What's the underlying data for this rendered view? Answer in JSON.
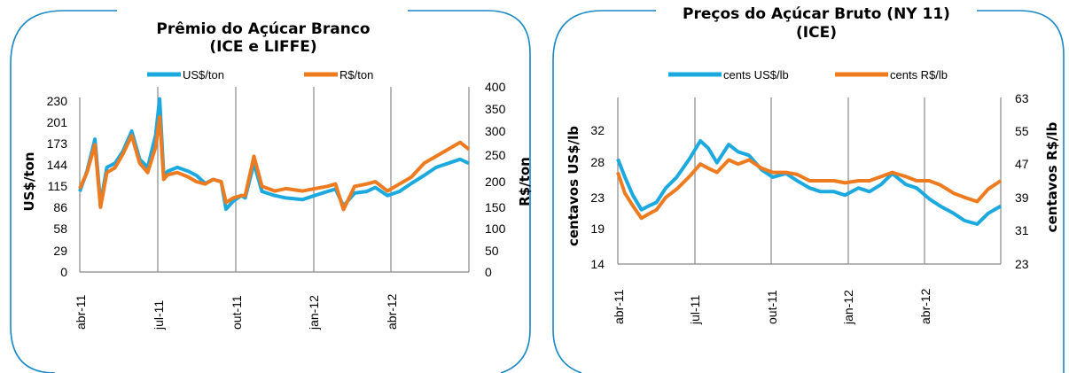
{
  "colors": {
    "usd": "#1ba9df",
    "brl": "#ee7b1f",
    "frame": "#1787c6",
    "grid": "#888888"
  },
  "chart_data": [
    {
      "type": "line",
      "title_line1": "Prêmio do Açúcar Branco",
      "title_line2": "(ICE e LIFFE)",
      "ylabel_left": "US$/ton",
      "ylabel_right": "R$/ton",
      "y_left_ticks": [
        "0",
        "29",
        "58",
        "86",
        "115",
        "144",
        "173",
        "201",
        "230"
      ],
      "y_right_ticks": [
        "0",
        "50",
        "100",
        "150",
        "200",
        "250",
        "300",
        "350",
        "400"
      ],
      "ylim_left": [
        0,
        230
      ],
      "ylim_right": [
        0,
        400
      ],
      "x_ticks": [
        "abr-11",
        "jul-11",
        "out-11",
        "jan-12",
        "abr-12"
      ],
      "x_range": [
        "2011-04-01",
        "2012-07-31"
      ],
      "legend_position": "top",
      "series": [
        {
          "name": "US$/ton",
          "axis": "left",
          "x": [
            "2011-04-01",
            "2011-04-10",
            "2011-04-20",
            "2011-04-27",
            "2011-05-05",
            "2011-05-15",
            "2011-05-25",
            "2011-06-05",
            "2011-06-15",
            "2011-06-25",
            "2011-07-05",
            "2011-07-10",
            "2011-07-15",
            "2011-07-20",
            "2011-08-01",
            "2011-08-15",
            "2011-08-25",
            "2011-09-05",
            "2011-09-15",
            "2011-09-25",
            "2011-10-01",
            "2011-10-10",
            "2011-10-20",
            "2011-10-25",
            "2011-11-05",
            "2011-11-15",
            "2011-12-01",
            "2011-12-15",
            "2012-01-05",
            "2012-01-20",
            "2012-02-05",
            "2012-02-15",
            "2012-02-25",
            "2012-03-10",
            "2012-03-25",
            "2012-04-05",
            "2012-04-20",
            "2012-05-05",
            "2012-05-20",
            "2012-06-05",
            "2012-06-20",
            "2012-07-05",
            "2012-07-20",
            "2012-07-31"
          ],
          "values": [
            100,
            125,
            165,
            85,
            130,
            135,
            150,
            175,
            140,
            130,
            170,
            215,
            120,
            125,
            130,
            125,
            120,
            110,
            115,
            112,
            78,
            88,
            95,
            92,
            135,
            100,
            95,
            92,
            90,
            95,
            100,
            103,
            82,
            98,
            100,
            105,
            95,
            100,
            110,
            120,
            130,
            135,
            140,
            135
          ]
        },
        {
          "name": "R$/ton",
          "axis": "right",
          "x": [
            "2011-04-01",
            "2011-04-10",
            "2011-04-20",
            "2011-04-27",
            "2011-05-05",
            "2011-05-15",
            "2011-05-25",
            "2011-06-05",
            "2011-06-15",
            "2011-06-25",
            "2011-07-05",
            "2011-07-10",
            "2011-07-15",
            "2011-07-20",
            "2011-08-01",
            "2011-08-15",
            "2011-08-25",
            "2011-09-05",
            "2011-09-15",
            "2011-09-25",
            "2011-10-01",
            "2011-10-10",
            "2011-10-20",
            "2011-10-25",
            "2011-11-05",
            "2011-11-15",
            "2011-12-01",
            "2011-12-15",
            "2012-01-05",
            "2012-01-20",
            "2012-02-05",
            "2012-02-15",
            "2012-02-25",
            "2012-03-10",
            "2012-03-25",
            "2012-04-05",
            "2012-04-20",
            "2012-05-05",
            "2012-05-20",
            "2012-06-05",
            "2012-06-20",
            "2012-07-05",
            "2012-07-20",
            "2012-07-31"
          ],
          "values": [
            180,
            215,
            275,
            140,
            215,
            225,
            255,
            295,
            235,
            215,
            270,
            335,
            200,
            210,
            215,
            205,
            195,
            190,
            200,
            195,
            150,
            160,
            165,
            165,
            250,
            185,
            175,
            180,
            175,
            180,
            185,
            190,
            135,
            185,
            190,
            195,
            175,
            190,
            205,
            235,
            250,
            265,
            280,
            265
          ]
        }
      ]
    },
    {
      "type": "line",
      "title_line1": "Preços do Açúcar Bruto (NY 11)",
      "title_line2": "(ICE)",
      "ylabel_left": "centavos US$/lb",
      "ylabel_right": "centavos R$/lb",
      "y_left_ticks": [
        "14",
        "19",
        "23",
        "28",
        "32"
      ],
      "y_right_ticks": [
        "23",
        "31",
        "39",
        "47",
        "55",
        "63"
      ],
      "ylim_left": [
        14,
        37
      ],
      "ylim_right": [
        23,
        63
      ],
      "x_ticks": [
        "abr-11",
        "jul-11",
        "out-11",
        "jan-12",
        "abr-12"
      ],
      "x_range": [
        "2011-04-01",
        "2012-07-31"
      ],
      "legend_position": "top",
      "series": [
        {
          "name": "cents US$/lb",
          "axis": "left",
          "x": [
            "2011-04-01",
            "2011-04-10",
            "2011-04-20",
            "2011-05-01",
            "2011-05-10",
            "2011-05-20",
            "2011-06-01",
            "2011-06-15",
            "2011-07-01",
            "2011-07-15",
            "2011-07-25",
            "2011-08-05",
            "2011-08-20",
            "2011-09-01",
            "2011-09-15",
            "2011-10-01",
            "2011-10-15",
            "2011-11-01",
            "2011-11-15",
            "2011-12-01",
            "2011-12-15",
            "2012-01-01",
            "2012-01-15",
            "2012-02-01",
            "2012-02-15",
            "2012-03-01",
            "2012-03-15",
            "2012-04-01",
            "2012-04-15",
            "2012-05-01",
            "2012-05-15",
            "2012-06-01",
            "2012-06-15",
            "2012-07-01",
            "2012-07-15",
            "2012-07-31"
          ],
          "values": [
            28.5,
            26,
            23.5,
            21.5,
            22,
            22.5,
            24.5,
            26,
            28.5,
            31,
            30,
            28,
            30.5,
            29.5,
            29,
            27,
            26,
            26.5,
            25.5,
            24.5,
            24,
            24,
            23.5,
            24.5,
            24,
            25,
            26.5,
            25,
            24.5,
            23,
            22,
            21,
            20,
            19.5,
            21,
            22
          ]
        },
        {
          "name": "cents R$/lb",
          "axis": "right",
          "x": [
            "2011-04-01",
            "2011-04-10",
            "2011-04-20",
            "2011-05-01",
            "2011-05-10",
            "2011-05-20",
            "2011-06-01",
            "2011-06-15",
            "2011-07-01",
            "2011-07-15",
            "2011-07-25",
            "2011-08-05",
            "2011-08-20",
            "2011-09-01",
            "2011-09-15",
            "2011-10-01",
            "2011-10-15",
            "2011-11-01",
            "2011-11-15",
            "2011-12-01",
            "2011-12-15",
            "2012-01-01",
            "2012-01-15",
            "2012-02-01",
            "2012-02-15",
            "2012-03-01",
            "2012-03-15",
            "2012-04-01",
            "2012-04-15",
            "2012-05-01",
            "2012-05-15",
            "2012-06-01",
            "2012-06-15",
            "2012-07-01",
            "2012-07-15",
            "2012-07-31"
          ],
          "values": [
            45,
            40,
            37,
            34,
            35,
            36,
            39,
            41,
            44,
            47,
            46,
            45,
            48,
            47,
            48,
            46,
            45,
            45,
            44.5,
            43,
            43,
            43,
            42.5,
            43,
            43,
            44,
            45,
            44,
            43,
            43,
            42,
            40,
            39,
            38,
            41,
            43
          ]
        }
      ]
    }
  ]
}
